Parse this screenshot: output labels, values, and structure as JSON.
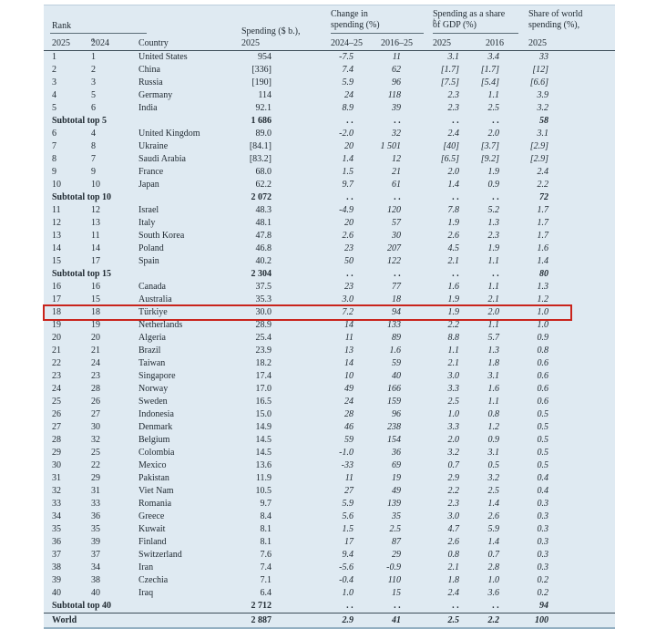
{
  "colors": {
    "panel_background": "#dfeaf2",
    "highlight_border": "#c9241c",
    "rule_dark": "#3c4d58",
    "rule_light": "#5b6d78",
    "text": "#212b33"
  },
  "table": {
    "headers": {
      "rank_group": "Rank",
      "rank_2025": "2025",
      "rank_2024": "2024",
      "rank_2024_sup": "a",
      "country": "Country",
      "spending_line1": "Spending ($ b.),",
      "spending_line2": "2025",
      "change_group_line1": "Change in",
      "change_group_line2": "spending (%)",
      "change_col1": "2024–25",
      "change_col2": "2016–25",
      "gdp_group_line1": "Spending as a share",
      "gdp_group_line2": "of GDP (%)",
      "gdp_group_sup": "b",
      "gdp_col1": "2025",
      "gdp_col2": "2016",
      "share_line1": "Share of world",
      "share_line2": "spending (%),",
      "share_line3": "2025"
    },
    "rows": [
      {
        "type": "country",
        "rank_2025": "1",
        "rank_2024": "1",
        "country": "United States",
        "spending": "954",
        "change_2024_25": "-7.5",
        "change_2016_25": "11",
        "gdp_2025": "3.1",
        "gdp_2016": "3.4",
        "world_share": "33"
      },
      {
        "type": "country",
        "rank_2025": "2",
        "rank_2024": "2",
        "country": "China",
        "spending": "[336]",
        "change_2024_25": "7.4",
        "change_2016_25": "62",
        "gdp_2025": "[1.7]",
        "gdp_2016": "[1.7]",
        "world_share": "[12]"
      },
      {
        "type": "country",
        "rank_2025": "3",
        "rank_2024": "3",
        "country": "Russia",
        "spending": "[190]",
        "change_2024_25": "5.9",
        "change_2016_25": "96",
        "gdp_2025": "[7.5]",
        "gdp_2016": "[5.4]",
        "world_share": "[6.6]"
      },
      {
        "type": "country",
        "rank_2025": "4",
        "rank_2024": "5",
        "country": "Germany",
        "spending": "114",
        "change_2024_25": "24",
        "change_2016_25": "118",
        "gdp_2025": "2.3",
        "gdp_2016": "1.1",
        "world_share": "3.9"
      },
      {
        "type": "country",
        "rank_2025": "5",
        "rank_2024": "6",
        "country": "India",
        "spending": "92.1",
        "change_2024_25": "8.9",
        "change_2016_25": "39",
        "gdp_2025": "2.3",
        "gdp_2016": "2.5",
        "world_share": "3.2"
      },
      {
        "type": "subtotal",
        "label": "Subtotal top 5",
        "spending": "1 686",
        "change_2024_25": ". .",
        "change_2016_25": ". .",
        "gdp_2025": ". .",
        "gdp_2016": ". .",
        "world_share": "58"
      },
      {
        "type": "country",
        "rank_2025": "6",
        "rank_2024": "4",
        "country": "United Kingdom",
        "spending": "89.0",
        "change_2024_25": "-2.0",
        "change_2016_25": "32",
        "gdp_2025": "2.4",
        "gdp_2016": "2.0",
        "world_share": "3.1"
      },
      {
        "type": "country",
        "rank_2025": "7",
        "rank_2024": "8",
        "country": "Ukraine",
        "spending": "[84.1]",
        "change_2024_25": "20",
        "change_2016_25": "1 501",
        "gdp_2025": "[40]",
        "gdp_2016": "[3.7]",
        "world_share": "[2.9]"
      },
      {
        "type": "country",
        "rank_2025": "8",
        "rank_2024": "7",
        "country": "Saudi Arabia",
        "spending": "[83.2]",
        "change_2024_25": "1.4",
        "change_2016_25": "12",
        "gdp_2025": "[6.5]",
        "gdp_2016": "[9.2]",
        "world_share": "[2.9]"
      },
      {
        "type": "country",
        "rank_2025": "9",
        "rank_2024": "9",
        "country": "France",
        "spending": "68.0",
        "change_2024_25": "1.5",
        "change_2016_25": "21",
        "gdp_2025": "2.0",
        "gdp_2016": "1.9",
        "world_share": "2.4"
      },
      {
        "type": "country",
        "rank_2025": "10",
        "rank_2024": "10",
        "country": "Japan",
        "spending": "62.2",
        "change_2024_25": "9.7",
        "change_2016_25": "61",
        "gdp_2025": "1.4",
        "gdp_2016": "0.9",
        "world_share": "2.2"
      },
      {
        "type": "subtotal",
        "label": "Subtotal top 10",
        "spending": "2 072",
        "change_2024_25": ". .",
        "change_2016_25": ". .",
        "gdp_2025": ". .",
        "gdp_2016": ". .",
        "world_share": "72"
      },
      {
        "type": "country",
        "rank_2025": "11",
        "rank_2024": "12",
        "country": "Israel",
        "spending": "48.3",
        "change_2024_25": "-4.9",
        "change_2016_25": "120",
        "gdp_2025": "7.8",
        "gdp_2016": "5.2",
        "world_share": "1.7"
      },
      {
        "type": "country",
        "rank_2025": "12",
        "rank_2024": "13",
        "country": "Italy",
        "spending": "48.1",
        "change_2024_25": "20",
        "change_2016_25": "57",
        "gdp_2025": "1.9",
        "gdp_2016": "1.3",
        "world_share": "1.7"
      },
      {
        "type": "country",
        "rank_2025": "13",
        "rank_2024": "11",
        "country": "South Korea",
        "spending": "47.8",
        "change_2024_25": "2.6",
        "change_2016_25": "30",
        "gdp_2025": "2.6",
        "gdp_2016": "2.3",
        "world_share": "1.7"
      },
      {
        "type": "country",
        "rank_2025": "14",
        "rank_2024": "14",
        "country": "Poland",
        "spending": "46.8",
        "change_2024_25": "23",
        "change_2016_25": "207",
        "gdp_2025": "4.5",
        "gdp_2016": "1.9",
        "world_share": "1.6"
      },
      {
        "type": "country",
        "rank_2025": "15",
        "rank_2024": "17",
        "country": "Spain",
        "spending": "40.2",
        "change_2024_25": "50",
        "change_2016_25": "122",
        "gdp_2025": "2.1",
        "gdp_2016": "1.1",
        "world_share": "1.4"
      },
      {
        "type": "subtotal",
        "label": "Subtotal top 15",
        "spending": "2 304",
        "change_2024_25": ". .",
        "change_2016_25": ". .",
        "gdp_2025": ". .",
        "gdp_2016": ". .",
        "world_share": "80"
      },
      {
        "type": "country",
        "rank_2025": "16",
        "rank_2024": "16",
        "country": "Canada",
        "spending": "37.5",
        "change_2024_25": "23",
        "change_2016_25": "77",
        "gdp_2025": "1.6",
        "gdp_2016": "1.1",
        "world_share": "1.3"
      },
      {
        "type": "country",
        "rank_2025": "17",
        "rank_2024": "15",
        "country": "Australia",
        "spending": "35.3",
        "change_2024_25": "3.0",
        "change_2016_25": "18",
        "gdp_2025": "1.9",
        "gdp_2016": "2.1",
        "world_share": "1.2"
      },
      {
        "type": "country",
        "highlight": true,
        "rank_2025": "18",
        "rank_2024": "18",
        "country": "Türkiye",
        "spending": "30.0",
        "change_2024_25": "7.2",
        "change_2016_25": "94",
        "gdp_2025": "1.9",
        "gdp_2016": "2.0",
        "world_share": "1.0"
      },
      {
        "type": "country",
        "rank_2025": "19",
        "rank_2024": "19",
        "country": "Netherlands",
        "spending": "28.9",
        "change_2024_25": "14",
        "change_2016_25": "133",
        "gdp_2025": "2.2",
        "gdp_2016": "1.1",
        "world_share": "1.0"
      },
      {
        "type": "country",
        "rank_2025": "20",
        "rank_2024": "20",
        "country": "Algeria",
        "spending": "25.4",
        "change_2024_25": "11",
        "change_2016_25": "89",
        "gdp_2025": "8.8",
        "gdp_2016": "5.7",
        "world_share": "0.9"
      },
      {
        "type": "country",
        "rank_2025": "21",
        "rank_2024": "21",
        "country": "Brazil",
        "spending": "23.9",
        "change_2024_25": "13",
        "change_2016_25": "1.6",
        "gdp_2025": "1.1",
        "gdp_2016": "1.3",
        "world_share": "0.8"
      },
      {
        "type": "country",
        "rank_2025": "22",
        "rank_2024": "24",
        "country": "Taiwan",
        "spending": "18.2",
        "change_2024_25": "14",
        "change_2016_25": "59",
        "gdp_2025": "2.1",
        "gdp_2016": "1.8",
        "world_share": "0.6"
      },
      {
        "type": "country",
        "rank_2025": "23",
        "rank_2024": "23",
        "country": "Singapore",
        "spending": "17.4",
        "change_2024_25": "10",
        "change_2016_25": "40",
        "gdp_2025": "3.0",
        "gdp_2016": "3.1",
        "world_share": "0.6"
      },
      {
        "type": "country",
        "rank_2025": "24",
        "rank_2024": "28",
        "country": "Norway",
        "spending": "17.0",
        "change_2024_25": "49",
        "change_2016_25": "166",
        "gdp_2025": "3.3",
        "gdp_2016": "1.6",
        "world_share": "0.6"
      },
      {
        "type": "country",
        "rank_2025": "25",
        "rank_2024": "26",
        "country": "Sweden",
        "spending": "16.5",
        "change_2024_25": "24",
        "change_2016_25": "159",
        "gdp_2025": "2.5",
        "gdp_2016": "1.1",
        "world_share": "0.6"
      },
      {
        "type": "country",
        "rank_2025": "26",
        "rank_2024": "27",
        "country": "Indonesia",
        "spending": "15.0",
        "change_2024_25": "28",
        "change_2016_25": "96",
        "gdp_2025": "1.0",
        "gdp_2016": "0.8",
        "world_share": "0.5"
      },
      {
        "type": "country",
        "rank_2025": "27",
        "rank_2024": "30",
        "country": "Denmark",
        "spending": "14.9",
        "change_2024_25": "46",
        "change_2016_25": "238",
        "gdp_2025": "3.3",
        "gdp_2016": "1.2",
        "world_share": "0.5"
      },
      {
        "type": "country",
        "rank_2025": "28",
        "rank_2024": "32",
        "country": "Belgium",
        "spending": "14.5",
        "change_2024_25": "59",
        "change_2016_25": "154",
        "gdp_2025": "2.0",
        "gdp_2016": "0.9",
        "world_share": "0.5"
      },
      {
        "type": "country",
        "rank_2025": "29",
        "rank_2024": "25",
        "country": "Colombia",
        "spending": "14.5",
        "change_2024_25": "-1.0",
        "change_2016_25": "36",
        "gdp_2025": "3.2",
        "gdp_2016": "3.1",
        "world_share": "0.5"
      },
      {
        "type": "country",
        "rank_2025": "30",
        "rank_2024": "22",
        "country": "Mexico",
        "spending": "13.6",
        "change_2024_25": "-33",
        "change_2016_25": "69",
        "gdp_2025": "0.7",
        "gdp_2016": "0.5",
        "world_share": "0.5"
      },
      {
        "type": "country",
        "rank_2025": "31",
        "rank_2024": "29",
        "country": "Pakistan",
        "spending": "11.9",
        "change_2024_25": "11",
        "change_2016_25": "19",
        "gdp_2025": "2.9",
        "gdp_2016": "3.2",
        "world_share": "0.4"
      },
      {
        "type": "country",
        "rank_2025": "32",
        "rank_2024": "31",
        "country": "Viet Nam",
        "spending": "10.5",
        "change_2024_25": "27",
        "change_2016_25": "49",
        "gdp_2025": "2.2",
        "gdp_2016": "2.5",
        "world_share": "0.4"
      },
      {
        "type": "country",
        "rank_2025": "33",
        "rank_2024": "33",
        "country": "Romania",
        "spending": "9.7",
        "change_2024_25": "5.9",
        "change_2016_25": "139",
        "gdp_2025": "2.3",
        "gdp_2016": "1.4",
        "world_share": "0.3"
      },
      {
        "type": "country",
        "rank_2025": "34",
        "rank_2024": "36",
        "country": "Greece",
        "spending": "8.4",
        "change_2024_25": "5.6",
        "change_2016_25": "35",
        "gdp_2025": "3.0",
        "gdp_2016": "2.6",
        "world_share": "0.3"
      },
      {
        "type": "country",
        "rank_2025": "35",
        "rank_2024": "35",
        "country": "Kuwait",
        "spending": "8.1",
        "change_2024_25": "1.5",
        "change_2016_25": "2.5",
        "gdp_2025": "4.7",
        "gdp_2016": "5.9",
        "world_share": "0.3"
      },
      {
        "type": "country",
        "rank_2025": "36",
        "rank_2024": "39",
        "country": "Finland",
        "spending": "8.1",
        "change_2024_25": "17",
        "change_2016_25": "87",
        "gdp_2025": "2.6",
        "gdp_2016": "1.4",
        "world_share": "0.3"
      },
      {
        "type": "country",
        "rank_2025": "37",
        "rank_2024": "37",
        "country": "Switzerland",
        "spending": "7.6",
        "change_2024_25": "9.4",
        "change_2016_25": "29",
        "gdp_2025": "0.8",
        "gdp_2016": "0.7",
        "world_share": "0.3"
      },
      {
        "type": "country",
        "rank_2025": "38",
        "rank_2024": "34",
        "country": "Iran",
        "spending": "7.4",
        "change_2024_25": "-5.6",
        "change_2016_25": "-0.9",
        "gdp_2025": "2.1",
        "gdp_2016": "2.8",
        "world_share": "0.3"
      },
      {
        "type": "country",
        "rank_2025": "39",
        "rank_2024": "38",
        "country": "Czechia",
        "spending": "7.1",
        "change_2024_25": "-0.4",
        "change_2016_25": "110",
        "gdp_2025": "1.8",
        "gdp_2016": "1.0",
        "world_share": "0.2"
      },
      {
        "type": "country",
        "rank_2025": "40",
        "rank_2024": "40",
        "country": "Iraq",
        "spending": "6.4",
        "change_2024_25": "1.0",
        "change_2016_25": "15",
        "gdp_2025": "2.4",
        "gdp_2016": "3.6",
        "world_share": "0.2"
      },
      {
        "type": "subtotal",
        "label": "Subtotal top 40",
        "spending": "2 712",
        "change_2024_25": ". .",
        "change_2016_25": ". .",
        "gdp_2025": ". .",
        "gdp_2016": ". .",
        "world_share": "94"
      },
      {
        "type": "world",
        "label": "World",
        "spending": "2 887",
        "change_2024_25": "2.9",
        "change_2016_25": "41",
        "gdp_2025": "2.5",
        "gdp_2016": "2.2",
        "world_share": "100"
      }
    ]
  }
}
